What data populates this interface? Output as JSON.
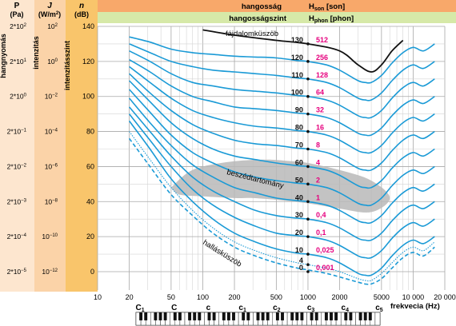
{
  "header": {
    "left_col1_title": "P",
    "left_col1_unit": "(Pa)",
    "left_col2_title": "J",
    "left_col2_unit_base": "(W/m",
    "left_col2_unit_sup": "2",
    "left_col2_unit_end": ")",
    "left_col3_title": "n",
    "left_col3_unit": "(dB)",
    "left_col1_axis": "hangnyomás",
    "left_col2_axis": "intenzitás",
    "left_col3_axis": "intenzitásszint",
    "hangossag_label": "hangosság",
    "hangossag_symbol": "H",
    "hangossag_sub": "son",
    "hangossag_unit": "[son]",
    "hangossagszint_label": "hangosságszint",
    "hangossagszint_symbol": "H",
    "hangossagszint_sub": "phon",
    "hangossagszint_unit": "[phon]"
  },
  "pressure_ticks": [
    {
      "base": "2*10",
      "exp": "2"
    },
    {
      "base": "2*10",
      "exp": "1"
    },
    {
      "base": "2*10",
      "exp": "0"
    },
    {
      "base": "2*10",
      "exp": "−1"
    },
    {
      "base": "2*10",
      "exp": "−2"
    },
    {
      "base": "2*10",
      "exp": "−3"
    },
    {
      "base": "2*10",
      "exp": "−4"
    },
    {
      "base": "2*10",
      "exp": "−5"
    }
  ],
  "intensity_ticks": [
    {
      "base": "10",
      "exp": "2"
    },
    {
      "base": "10",
      "exp": "0"
    },
    {
      "base": "10",
      "exp": "−2"
    },
    {
      "base": "10",
      "exp": "−4"
    },
    {
      "base": "10",
      "exp": "−6"
    },
    {
      "base": "10",
      "exp": "−8"
    },
    {
      "base": "10",
      "exp": "−10"
    },
    {
      "base": "10",
      "exp": "−12"
    }
  ],
  "annotations": {
    "pain_threshold": "fájdalomküszöb",
    "speech_range": "beszédtartomány",
    "hearing_threshold": "hallásküszöb",
    "x_axis_label": "frekvecia (Hz)"
  },
  "piano": {
    "note_labels": [
      {
        "letter": "C",
        "sub": "1"
      },
      {
        "letter": "C",
        "sub": ""
      },
      {
        "letter": "c",
        "sub": ""
      },
      {
        "letter": "c",
        "sub": "1"
      },
      {
        "letter": "c",
        "sub": "2"
      },
      {
        "letter": "c",
        "sub": "3"
      },
      {
        "letter": "c",
        "sub": "4"
      },
      {
        "letter": "c",
        "sub": "5"
      }
    ],
    "octaves": 7
  },
  "colors": {
    "header_orange": "#f8a86a",
    "header_green": "#d6e9a8",
    "col_pressure": "#fde6cf",
    "col_intensity": "#fbd3a8",
    "col_level": "#f9c56b",
    "curve_blue": "#1a9ad6",
    "pain_curve": "#111111",
    "son_magenta": "#e6007e",
    "speech_gray": "#b8b8b8"
  },
  "chart_data": {
    "type": "line",
    "title": "",
    "xlabel": "frekvecia (Hz)",
    "ylabel": "intenzitásszint n (dB)",
    "xscale": "log",
    "xlim": [
      10,
      20000
    ],
    "ylim": [
      -5,
      140
    ],
    "grid": true,
    "x_tick_labels": [
      "10",
      "20",
      "50",
      "100",
      "200",
      "500",
      "1000",
      "2000",
      "5000",
      "10 000",
      "20 000"
    ],
    "x_ticks": [
      10,
      20,
      50,
      100,
      200,
      500,
      1000,
      2000,
      5000,
      10000,
      20000
    ],
    "y_tick_labels": [
      "0",
      "20",
      "40",
      "60",
      "80",
      "100",
      "120",
      "140"
    ],
    "y_ticks": [
      0,
      20,
      40,
      60,
      80,
      100,
      120,
      140
    ],
    "phon_labels": [
      "0",
      "4",
      "10",
      "20",
      "30",
      "40",
      "50",
      "60",
      "70",
      "80",
      "90",
      "100",
      "110",
      "120",
      "130"
    ],
    "phon_values": [
      0,
      4,
      10,
      20,
      30,
      40,
      50,
      60,
      70,
      80,
      90,
      100,
      110,
      120,
      130
    ],
    "son_labels": [
      "0,001",
      "0,025",
      "0,1",
      "0,4",
      "1",
      "2",
      "4",
      "8",
      "16",
      "32",
      "64",
      "128",
      "256",
      "512"
    ],
    "son_values": [
      0.001,
      0.025,
      0.1,
      0.4,
      1,
      2,
      4,
      8,
      16,
      32,
      64,
      128,
      256,
      512
    ],
    "loudness_curve_x": [
      20,
      31.5,
      50,
      80,
      125,
      200,
      315,
      500,
      800,
      1000,
      1500,
      2000,
      3000,
      3500,
      4000,
      5000,
      6300,
      8000,
      10000,
      12500,
      16000
    ],
    "loudness_curves": [
      {
        "phon": 10,
        "values": [
          86,
          70,
          53,
          40,
          30,
          22,
          17,
          13,
          10.5,
          10,
          8,
          5,
          -1,
          -2,
          -2,
          2,
          9,
          15,
          18,
          16,
          20
        ]
      },
      {
        "phon": 20,
        "values": [
          90,
          75,
          60,
          47,
          38,
          31,
          26,
          22,
          20.5,
          20,
          18,
          15,
          9,
          8,
          8,
          12,
          19,
          25,
          28,
          26,
          30
        ]
      },
      {
        "phon": 30,
        "values": [
          94,
          80,
          66,
          54,
          46,
          40,
          35,
          32,
          30.5,
          30,
          28,
          25,
          19,
          18,
          18,
          22,
          29,
          35,
          38,
          36,
          40
        ]
      },
      {
        "phon": 40,
        "values": [
          99,
          85,
          72,
          61,
          54,
          48,
          45,
          42,
          40.5,
          40,
          38,
          35,
          29,
          28,
          28,
          32,
          39,
          45,
          48,
          46,
          50
        ]
      },
      {
        "phon": 50,
        "values": [
          104,
          91,
          78,
          68,
          62,
          57,
          54,
          52,
          50.5,
          50,
          48,
          45,
          39,
          38,
          38,
          42,
          49,
          55,
          58,
          56,
          60
        ]
      },
      {
        "phon": 60,
        "values": [
          109,
          97,
          85,
          76,
          70,
          66,
          64,
          62,
          60.5,
          60,
          58,
          55,
          49,
          48,
          48,
          52,
          59,
          65,
          68,
          66,
          70
        ]
      },
      {
        "phon": 70,
        "values": [
          113,
          102,
          92,
          84,
          79,
          75,
          73,
          72,
          70.5,
          70,
          68,
          65,
          59,
          58,
          58,
          62,
          69,
          75,
          78,
          76,
          80
        ]
      },
      {
        "phon": 80,
        "values": [
          117,
          108,
          99,
          92,
          88,
          85,
          83,
          82,
          80.5,
          80,
          78,
          75,
          69,
          68,
          68,
          72,
          79,
          85,
          88,
          86,
          90
        ]
      },
      {
        "phon": 90,
        "values": [
          121,
          114,
          106,
          100,
          97,
          94,
          93,
          92,
          90.5,
          90,
          88,
          85,
          79,
          78,
          78,
          82,
          89,
          95,
          98,
          96,
          100
        ]
      },
      {
        "phon": 100,
        "values": [
          126,
          120,
          113,
          108,
          106,
          104,
          103,
          102,
          100.5,
          100,
          98,
          95,
          89,
          88,
          88,
          92,
          99,
          105,
          108,
          106,
          110
        ]
      },
      {
        "phon": 110,
        "values": [
          130,
          125,
          120,
          117,
          115,
          114,
          113,
          112,
          110.5,
          110,
          108,
          105,
          99,
          98,
          98,
          102,
          109,
          115,
          118,
          116,
          120
        ]
      },
      {
        "phon": 120,
        "values": [
          134,
          131,
          127,
          125,
          124,
          123,
          122.5,
          122,
          120.5,
          120,
          118,
          115,
          109,
          108,
          108,
          112,
          119,
          125,
          128,
          126,
          130
        ]
      }
    ],
    "pain_threshold": {
      "x": [
        100,
        200,
        500,
        1000,
        2000,
        3000,
        4000,
        5000,
        6300,
        8000
      ],
      "y": [
        138,
        135,
        132,
        130,
        126,
        118,
        114,
        118,
        126,
        132
      ]
    },
    "hearing_threshold": {
      "x": [
        20,
        31.5,
        50,
        80,
        125,
        200,
        315,
        500,
        800,
        1000,
        1500,
        2000,
        3000,
        3500,
        4000,
        5000,
        6300,
        8000,
        10000,
        12500,
        16000
      ],
      "y": [
        76,
        60,
        44,
        32,
        22,
        14,
        9,
        5,
        2,
        1,
        -1,
        -3,
        -6,
        -7,
        -7,
        -4,
        2,
        8,
        11,
        9,
        14
      ]
    },
    "four_phon_curve": {
      "x": [
        20,
        31.5,
        50,
        80,
        125,
        200,
        315,
        500,
        800,
        1000,
        1500,
        2000,
        3000,
        3500,
        4000,
        5000,
        6300,
        8000,
        10000,
        12500,
        16000
      ],
      "y": [
        80,
        64,
        48,
        35,
        25,
        17,
        12,
        8,
        5,
        4,
        2,
        0,
        -4,
        -5,
        -5,
        -1,
        5,
        11,
        14,
        12,
        17
      ]
    },
    "speech_region": {
      "x": [
        50,
        70,
        100,
        200,
        400,
        700,
        1000,
        2000,
        4000,
        6000,
        4000,
        2000,
        1000,
        500,
        300,
        200,
        100,
        60
      ],
      "y": [
        48,
        56,
        60,
        63,
        64,
        63,
        62,
        58,
        52,
        42,
        34,
        36,
        39,
        41,
        42,
        42,
        43,
        44
      ]
    }
  }
}
